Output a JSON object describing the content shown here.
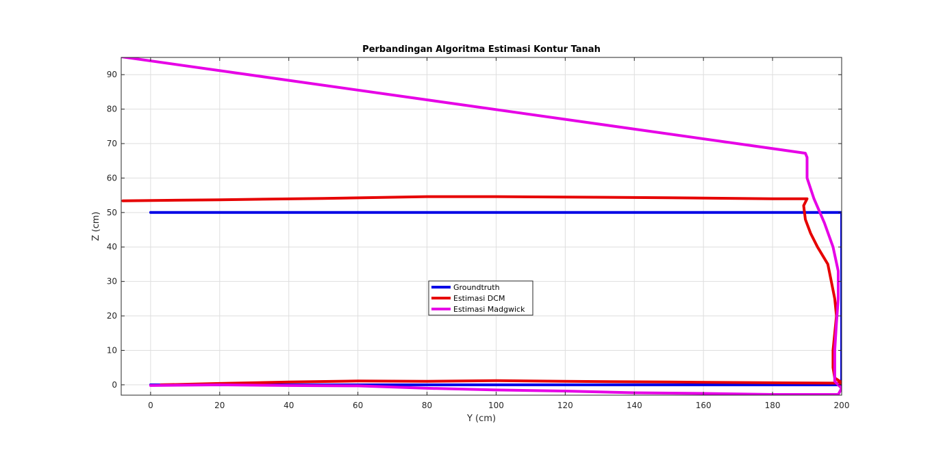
{
  "chart_data": {
    "type": "line",
    "title": "Perbandingan Algoritma Estimasi Kontur Tanah",
    "xlabel": "Y (cm)",
    "ylabel": "Z (cm)",
    "xlim": [
      -8.5,
      200
    ],
    "ylim": [
      -3,
      95
    ],
    "xticks": [
      0,
      20,
      40,
      60,
      80,
      100,
      120,
      140,
      160,
      180,
      200
    ],
    "yticks": [
      0,
      10,
      20,
      30,
      40,
      50,
      60,
      70,
      80,
      90
    ],
    "grid": true,
    "legend_position": "center",
    "series": [
      {
        "name": "Groundtruth",
        "color": "#0000e6",
        "points": [
          [
            0,
            50
          ],
          [
            200,
            50
          ],
          [
            200,
            0
          ],
          [
            0,
            0
          ]
        ]
      },
      {
        "name": "Estimasi DCM",
        "color": "#e60000",
        "points": [
          [
            -8,
            53.4
          ],
          [
            20,
            53.7
          ],
          [
            50,
            54.1
          ],
          [
            80,
            54.6
          ],
          [
            100,
            54.6
          ],
          [
            120,
            54.5
          ],
          [
            150,
            54.3
          ],
          [
            180,
            54.0
          ],
          [
            190,
            54.0
          ],
          [
            189,
            52
          ],
          [
            189.5,
            48
          ],
          [
            191,
            44
          ],
          [
            193,
            40
          ],
          [
            196,
            35
          ],
          [
            197,
            30
          ],
          [
            198,
            25
          ],
          [
            198.5,
            20
          ],
          [
            198,
            15
          ],
          [
            197.5,
            10
          ],
          [
            197.5,
            5
          ],
          [
            198,
            2
          ],
          [
            199.5,
            1
          ],
          [
            200.5,
            0.5
          ],
          [
            198,
            0.5
          ],
          [
            180,
            0.6
          ],
          [
            150,
            0.8
          ],
          [
            120,
            1.0
          ],
          [
            100,
            1.2
          ],
          [
            80,
            1.0
          ],
          [
            60,
            1.1
          ],
          [
            40,
            0.8
          ],
          [
            20,
            0.4
          ],
          [
            3,
            0
          ]
        ]
      },
      {
        "name": "Estimasi Madgwick",
        "color": "#e600e6",
        "points": [
          [
            -8.5,
            95.2
          ],
          [
            189.5,
            67.2
          ],
          [
            190,
            66
          ],
          [
            190,
            60
          ],
          [
            192,
            54
          ],
          [
            195,
            47
          ],
          [
            197.5,
            40
          ],
          [
            199,
            33
          ],
          [
            199,
            25
          ],
          [
            198.5,
            18
          ],
          [
            198,
            10
          ],
          [
            198,
            5
          ],
          [
            198,
            1
          ],
          [
            199,
            0
          ],
          [
            200,
            -1
          ],
          [
            199,
            -2.8
          ],
          [
            190,
            -2.8
          ],
          [
            180,
            -2.8
          ],
          [
            160,
            -2.5
          ],
          [
            140,
            -2.3
          ],
          [
            120,
            -1.8
          ],
          [
            100,
            -1.5
          ],
          [
            80,
            -1.0
          ],
          [
            60,
            -0.3
          ],
          [
            40,
            -0.2
          ],
          [
            20,
            0
          ],
          [
            0,
            -0.2
          ]
        ]
      }
    ]
  }
}
